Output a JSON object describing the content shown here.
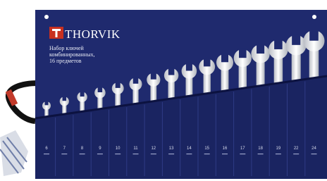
{
  "brand": "THORVIK",
  "title": [
    "Набор ключей",
    "комбинированных,",
    "16 предметов"
  ],
  "sizes": [
    "6",
    "7",
    "8",
    "9",
    "10",
    "11",
    "12",
    "13",
    "14",
    "15",
    "16",
    "17",
    "18",
    "19",
    "22",
    "24"
  ]
}
